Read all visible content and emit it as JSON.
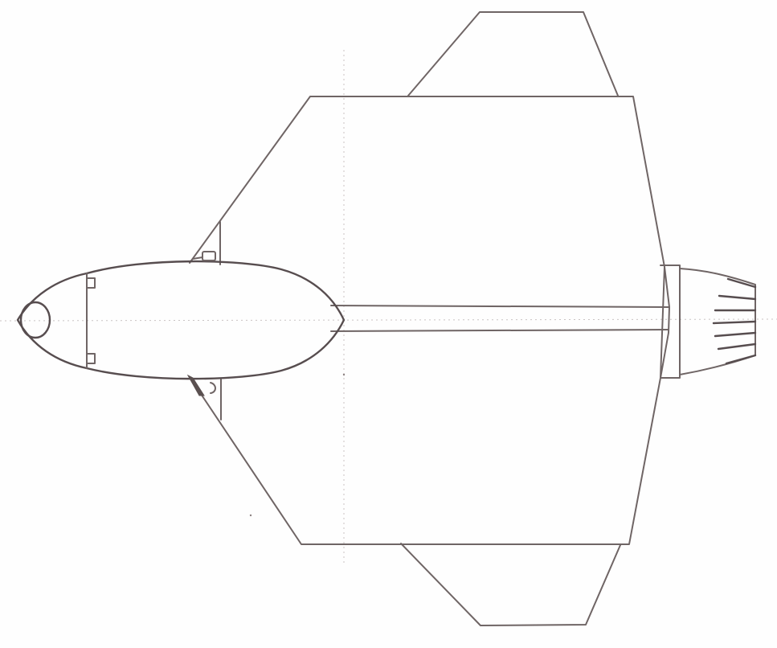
{
  "sketch": {
    "subject": "aircraft-top-view",
    "medium": "pencil",
    "stroke_color": "#6f6565",
    "guide_color": "#c9c3c3",
    "paper_color": "#fefefe"
  }
}
